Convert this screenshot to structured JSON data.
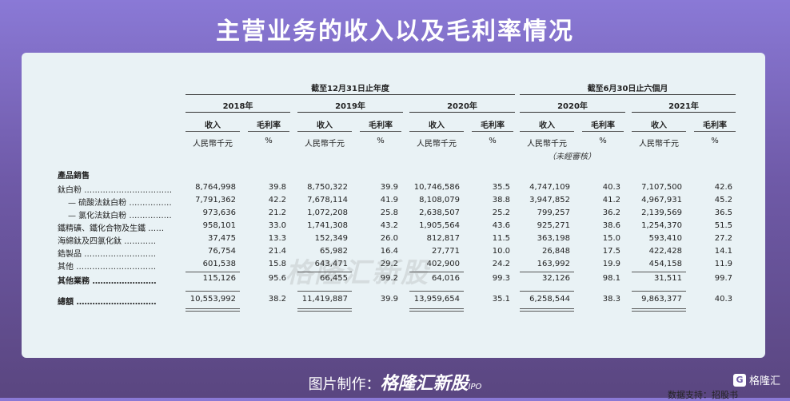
{
  "title": "主营业务的收入以及毛利率情况",
  "table": {
    "period_headers": [
      "截至12月31日止年度",
      "截至6月30日止六個月"
    ],
    "years": [
      "2018年",
      "2019年",
      "2020年",
      "2020年",
      "2021年"
    ],
    "col_labels": {
      "revenue": "收入",
      "margin": "毛利率"
    },
    "units": {
      "revenue": "人民幣千元",
      "margin": "%"
    },
    "unaudited_note": "（未經審核）",
    "section_label": "產品銷售",
    "rows": [
      {
        "label": "鈦白粉 ………………………………",
        "vals": [
          "8,764,998",
          "39.8",
          "8,750,322",
          "39.9",
          "10,746,586",
          "35.5",
          "4,747,109",
          "40.3",
          "7,107,500",
          "42.6"
        ]
      },
      {
        "label": "— 硫酸法鈦白粉 ………………",
        "vals": [
          "7,791,362",
          "42.2",
          "7,678,114",
          "41.9",
          "8,108,079",
          "38.8",
          "3,947,852",
          "41.2",
          "4,967,931",
          "45.2"
        ]
      },
      {
        "label": "— 氯化法鈦白粉 ………………",
        "vals": [
          "973,636",
          "21.2",
          "1,072,208",
          "25.8",
          "2,638,507",
          "25.2",
          "799,257",
          "36.2",
          "2,139,569",
          "36.5"
        ]
      },
      {
        "label": "鐵精礦、鐵化合物及生鐵 ……",
        "vals": [
          "958,101",
          "33.0",
          "1,741,308",
          "43.2",
          "1,905,564",
          "43.6",
          "925,271",
          "38.6",
          "1,254,370",
          "51.5"
        ]
      },
      {
        "label": "海綿鈦及四氯化鈦 …………",
        "vals": [
          "37,475",
          "13.3",
          "152,349",
          "26.0",
          "812,817",
          "11.5",
          "363,198",
          "15.0",
          "593,410",
          "27.2"
        ]
      },
      {
        "label": "鋯製品 ………………………",
        "vals": [
          "76,754",
          "21.4",
          "65,982",
          "16.4",
          "27,771",
          "10.0",
          "26,848",
          "17.5",
          "422,428",
          "14.1"
        ]
      },
      {
        "label": "其他 …………………………",
        "vals": [
          "601,538",
          "15.8",
          "643,471",
          "29.2",
          "402,900",
          "24.2",
          "163,992",
          "19.9",
          "454,158",
          "11.9"
        ]
      },
      {
        "label": "其他業務 ……………………",
        "bold": true,
        "vals": [
          "115,126",
          "95.6",
          "66,455",
          "99.2",
          "64,016",
          "99.3",
          "32,126",
          "98.1",
          "31,511",
          "99.7"
        ]
      },
      {
        "label": "總額 …………………………",
        "bold": true,
        "vals": [
          "10,553,992",
          "38.2",
          "11,419,887",
          "39.9",
          "13,959,654",
          "35.1",
          "6,258,544",
          "38.3",
          "9,863,377",
          "40.3"
        ]
      }
    ]
  },
  "source": "数据支持：招股书",
  "watermark": "格隆汇新股",
  "footer": {
    "prefix": "图片制作：",
    "brand": "格隆汇新股",
    "suffix": "IPO"
  },
  "corner_logo": {
    "glyph": "G",
    "text": "格隆汇"
  }
}
